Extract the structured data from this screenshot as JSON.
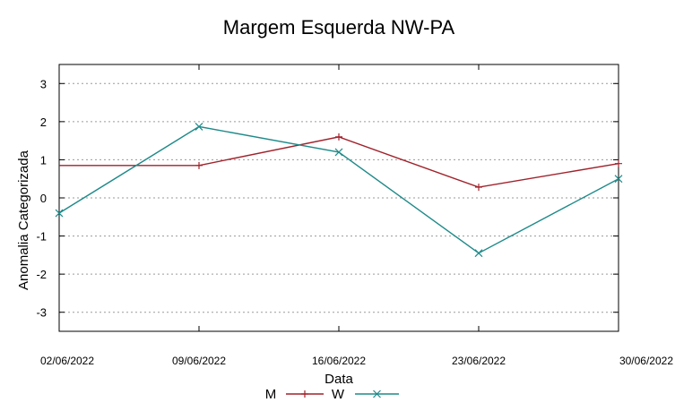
{
  "chart_data": {
    "type": "line",
    "title": "Margem Esquerda NW-PA",
    "xlabel": "Data",
    "ylabel": "Anomalia Categorizada",
    "x_ticks": [
      "02/06/2022",
      "09/06/2022",
      "16/06/2022",
      "23/06/2022",
      "30/06/2022"
    ],
    "y_ticks": [
      "3",
      "2",
      "1",
      "0",
      "-1",
      "-2",
      "-3"
    ],
    "ylim": [
      -3.5,
      3.5
    ],
    "grid": true,
    "legend_position": "bottom",
    "series": [
      {
        "name": "M",
        "color": "#a0222b",
        "marker": "plus",
        "points": [
          {
            "x": "02/06/2022",
            "y": 0.85,
            "marker": false
          },
          {
            "x": "09/06/2022",
            "y": 0.85,
            "marker": true
          },
          {
            "x": "16/06/2022",
            "y": 1.6,
            "marker": true
          },
          {
            "x": "23/06/2022",
            "y": 0.28,
            "marker": true
          },
          {
            "x": "30/06/2022",
            "y": 0.9,
            "marker": true
          }
        ]
      },
      {
        "name": "W",
        "color": "#1f8a8a",
        "marker": "cross",
        "points": [
          {
            "x": "02/06/2022",
            "y": -0.4,
            "marker": true
          },
          {
            "x": "09/06/2022",
            "y": 1.87,
            "marker": true
          },
          {
            "x": "16/06/2022",
            "y": 1.2,
            "marker": true
          },
          {
            "x": "23/06/2022",
            "y": -1.45,
            "marker": true
          },
          {
            "x": "30/06/2022",
            "y": 0.5,
            "marker": true
          }
        ]
      }
    ]
  }
}
